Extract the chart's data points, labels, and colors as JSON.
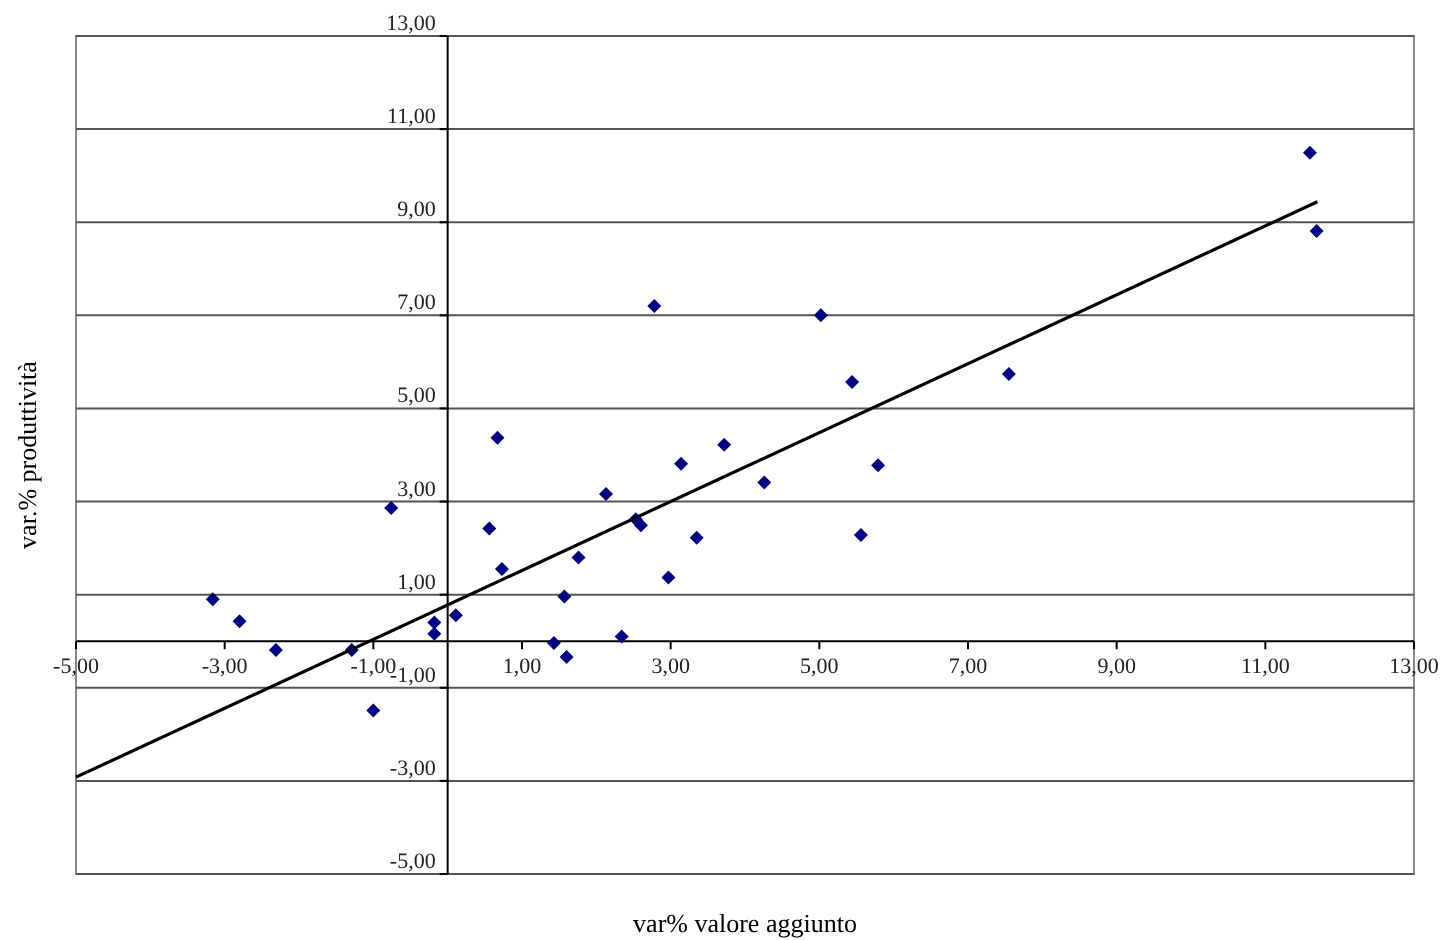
{
  "chart_data": {
    "type": "scatter",
    "xlabel": "var% valore aggiunto",
    "ylabel": "var.% produttività",
    "xlim": [
      -5,
      13
    ],
    "ylim": [
      -5,
      13
    ],
    "xticks": [
      {
        "value": -5,
        "label": "-5,00"
      },
      {
        "value": -3,
        "label": "-3,00"
      },
      {
        "value": -1,
        "label": "-1,00"
      },
      {
        "value": 1,
        "label": "1,00"
      },
      {
        "value": 3,
        "label": "3,00"
      },
      {
        "value": 5,
        "label": "5,00"
      },
      {
        "value": 7,
        "label": "7,00"
      },
      {
        "value": 9,
        "label": "9,00"
      },
      {
        "value": 11,
        "label": "11,00"
      },
      {
        "value": 13,
        "label": "13,00"
      }
    ],
    "yticks": [
      {
        "value": -5,
        "label": "-5,00"
      },
      {
        "value": -3,
        "label": "-3,00"
      },
      {
        "value": -1,
        "label": "-1,00"
      },
      {
        "value": 1,
        "label": "1,00"
      },
      {
        "value": 3,
        "label": "3,00"
      },
      {
        "value": 5,
        "label": "5,00"
      },
      {
        "value": 7,
        "label": "7,00"
      },
      {
        "value": 9,
        "label": "9,00"
      },
      {
        "value": 11,
        "label": "11,00"
      },
      {
        "value": 13,
        "label": "13,00"
      }
    ],
    "grid": "y",
    "series": [
      {
        "color": "#000080",
        "marker": "diamond",
        "x": [
          -3.16,
          -2.8,
          -2.31,
          -1.29,
          -0.76,
          -1.0,
          -0.18,
          -0.18,
          0.11,
          0.56,
          0.73,
          1.43,
          1.57,
          1.6,
          1.76,
          2.13,
          2.34,
          2.53,
          2.6,
          2.97,
          3.14,
          3.35,
          0.67,
          2.78,
          3.72,
          5.02,
          5.44,
          7.55,
          11.6,
          11.69,
          5.79,
          4.26,
          5.56
        ],
        "values": [
          0.9,
          0.43,
          -0.19,
          -0.19,
          2.86,
          -1.49,
          0.4,
          0.16,
          0.56,
          2.42,
          1.55,
          -0.04,
          0.96,
          -0.34,
          1.8,
          3.16,
          0.1,
          2.62,
          2.49,
          1.37,
          3.81,
          2.22,
          4.37,
          7.2,
          4.22,
          7.0,
          5.57,
          5.74,
          10.49,
          8.81,
          3.78,
          3.41,
          2.28
        ]
      },
      {
        "type": "line",
        "color": "#000000",
        "marker": "none",
        "line_style": "solid",
        "x": [
          -5.0,
          11.7
        ],
        "values": [
          -2.92,
          9.44
        ]
      }
    ]
  }
}
